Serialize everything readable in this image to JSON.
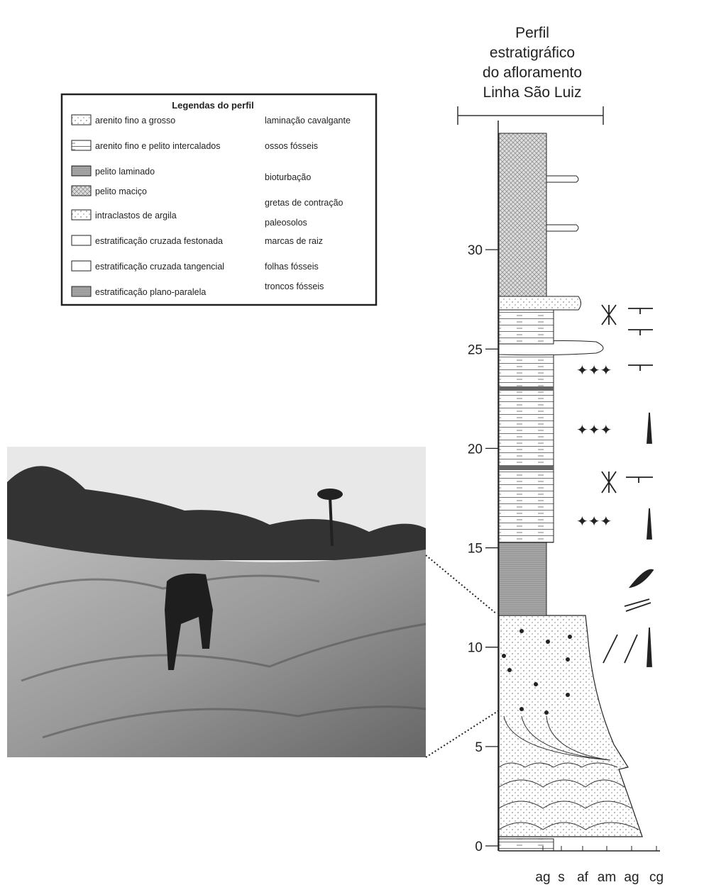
{
  "header": {
    "title_lines": [
      "Perfil",
      "estratigráfico",
      "do afloramento",
      "Linha São Luiz"
    ]
  },
  "legend": {
    "title": "Legendas do perfil",
    "left": [
      "arenito fino a grosso",
      "arenito fino e pelito intercalados",
      "pelito laminado",
      "pelito maciço",
      "intraclastos de argila",
      "estratificação cruzada festonada",
      "estratificação cruzada tangencial",
      "estratificação plano-paralela"
    ],
    "right": [
      "laminação cavalgante",
      "ossos fósseis",
      "bioturbação",
      "gretas de contração",
      "paleosolos",
      "marcas de raiz",
      "folhas fósseis",
      "troncos fósseis"
    ]
  },
  "axis": {
    "ticks": [
      0,
      5,
      10,
      15,
      20,
      25,
      30
    ],
    "grain_labels": [
      "ag",
      "s",
      "af",
      "am",
      "ag",
      "cg"
    ]
  }
}
